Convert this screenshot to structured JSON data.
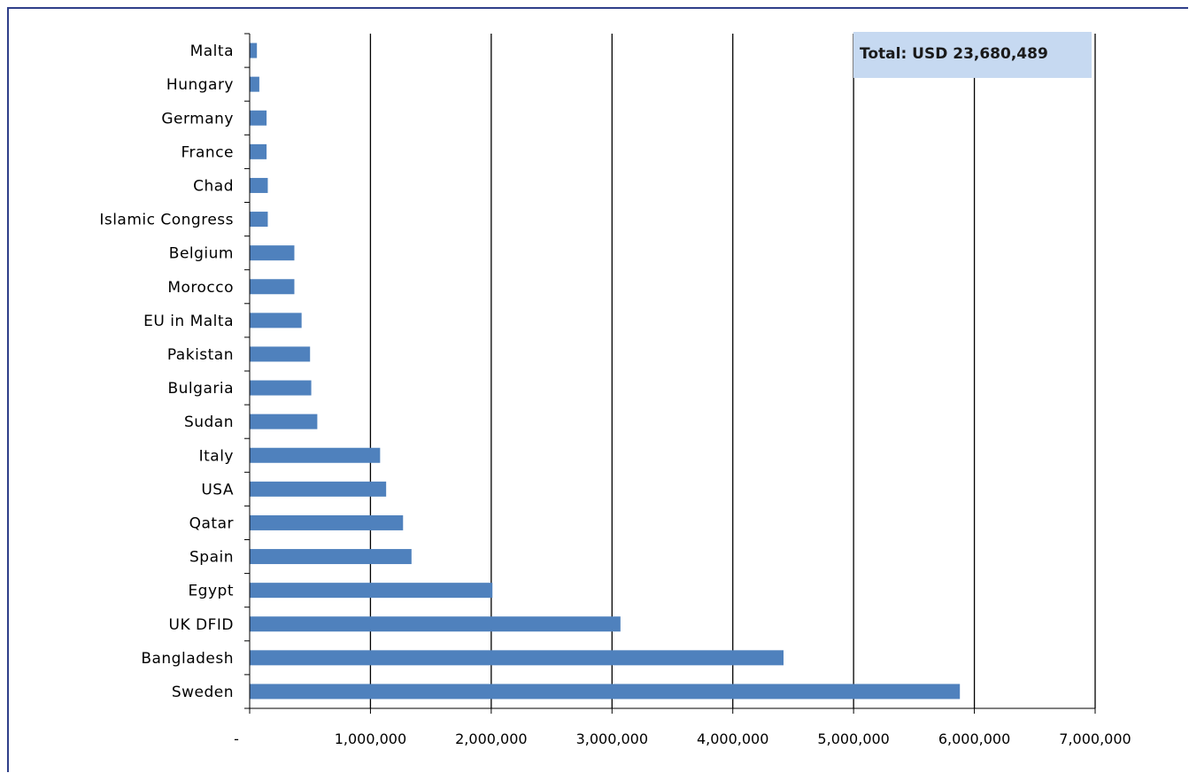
{
  "chart_data": {
    "type": "bar",
    "orientation": "horizontal",
    "categories": [
      "Malta",
      "Hungary",
      "Germany",
      "France",
      "Chad",
      "Islamic Congress",
      "Belgium",
      "Morocco",
      "EU in Malta",
      "Pakistan",
      "Bulgaria",
      "Sudan",
      "Italy",
      "USA",
      "Qatar",
      "Spain",
      "Egypt",
      "UK DFID",
      "Bangladesh",
      "Sweden"
    ],
    "values": [
      60000,
      80000,
      140000,
      140000,
      150000,
      150000,
      370000,
      370000,
      430000,
      500000,
      510000,
      560000,
      1080000,
      1130000,
      1270000,
      1340000,
      2010000,
      3070000,
      4420000,
      5880000
    ],
    "xlim": [
      0,
      7000000
    ],
    "x_ticks": [
      0,
      1000000,
      2000000,
      3000000,
      4000000,
      5000000,
      6000000,
      7000000
    ],
    "x_tick_labels": [
      "-",
      "1,000,000",
      "2,000,000",
      "3,000,000",
      "4,000,000",
      "5,000,000",
      "6,000,000",
      "7,000,000"
    ],
    "grid": "vertical",
    "bar_color": "#4f81bd",
    "annotation": "Total: USD 23,680,489",
    "annotation_bg": "#c6d9f1"
  }
}
